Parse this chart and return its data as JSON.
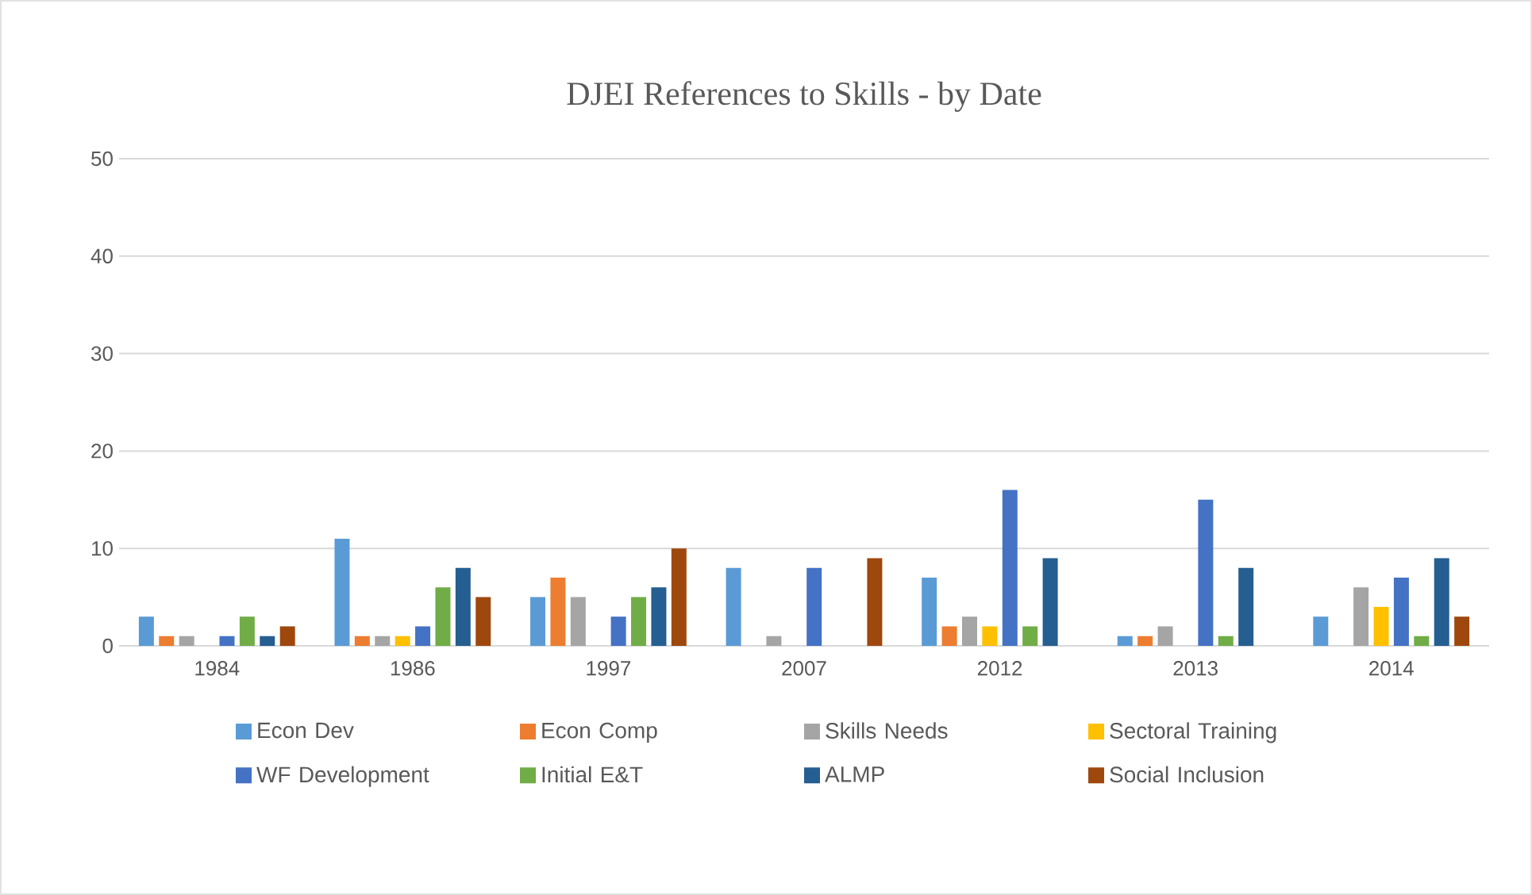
{
  "chart_data": {
    "type": "bar",
    "title": "DJEI References to Skills - by Date",
    "categories": [
      "1984",
      "1986",
      "1997",
      "2007",
      "2012",
      "2013",
      "2014"
    ],
    "series": [
      {
        "name": "Econ Dev",
        "color": "#5b9bd5",
        "values": [
          3,
          11,
          5,
          8,
          7,
          1,
          3
        ]
      },
      {
        "name": "Econ Comp",
        "color": "#ed7d31",
        "values": [
          1,
          1,
          7,
          null,
          2,
          1,
          null
        ]
      },
      {
        "name": "Skills Needs",
        "color": "#a5a5a5",
        "values": [
          1,
          1,
          5,
          1,
          3,
          2,
          6
        ]
      },
      {
        "name": "Sectoral Training",
        "color": "#ffc000",
        "values": [
          null,
          1,
          null,
          null,
          2,
          null,
          4
        ]
      },
      {
        "name": "WF Development",
        "color": "#4472c4",
        "values": [
          1,
          2,
          3,
          8,
          16,
          15,
          7
        ]
      },
      {
        "name": "Initial E&T",
        "color": "#70ad47",
        "values": [
          3,
          6,
          5,
          null,
          2,
          1,
          1
        ]
      },
      {
        "name": "ALMP",
        "color": "#255e91",
        "values": [
          1,
          8,
          6,
          null,
          9,
          8,
          9
        ]
      },
      {
        "name": "Social Inclusion",
        "color": "#9e480e",
        "values": [
          2,
          5,
          10,
          9,
          null,
          null,
          3
        ]
      }
    ],
    "ylim": [
      0,
      50
    ],
    "yticks": [
      0,
      10,
      20,
      30,
      40,
      50
    ],
    "grid": "y",
    "legend": "bottom"
  }
}
